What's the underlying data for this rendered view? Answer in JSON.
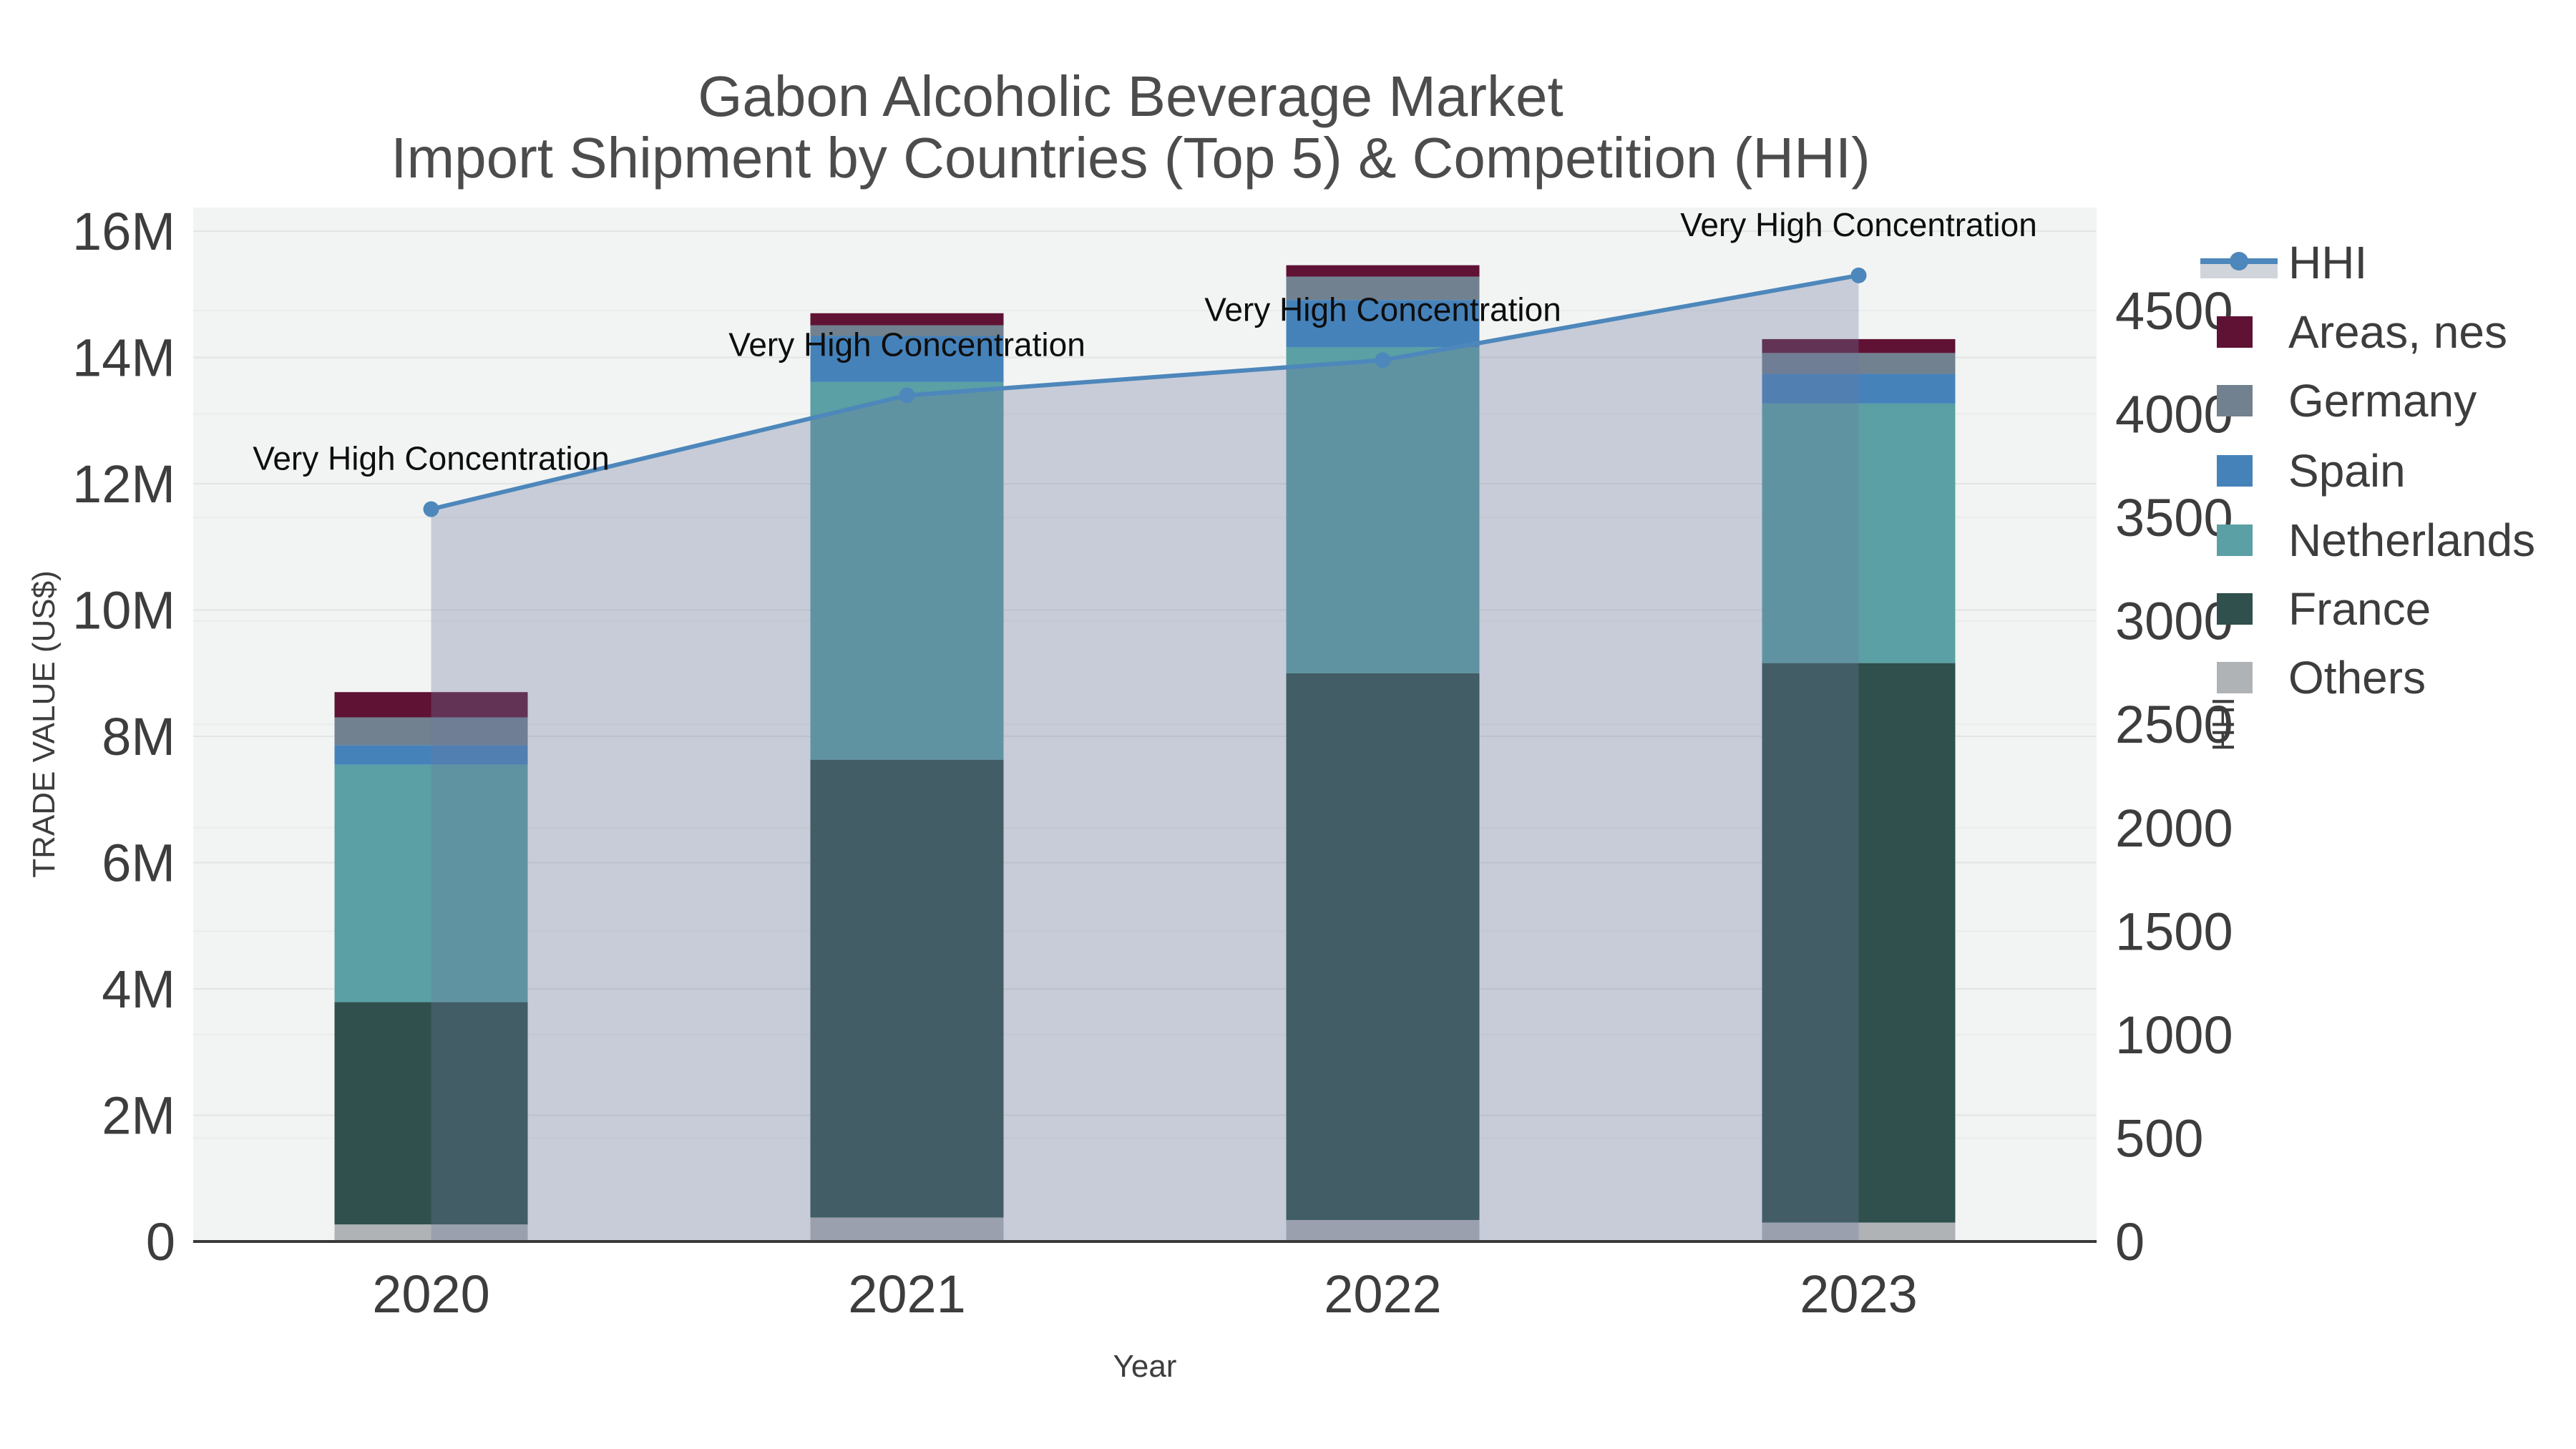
{
  "title": {
    "line1": "Gabon Alcoholic Beverage Market",
    "line2": "Import Shipment by Countries (Top 5) & Competition (HHI)"
  },
  "axes": {
    "left_title": "TRADE VALUE (US$)",
    "right_title": "HHI",
    "x_title": "Year",
    "left_ticks": [
      "0",
      "2M",
      "4M",
      "6M",
      "8M",
      "10M",
      "12M",
      "14M",
      "16M"
    ],
    "right_ticks": [
      "0",
      "500",
      "1000",
      "1500",
      "2000",
      "2500",
      "3000",
      "3500",
      "4000",
      "4500"
    ]
  },
  "colors": {
    "plot_bg": "#f2f4f3",
    "grid_major": "#e2e5e4",
    "grid_minor": "#eaecec",
    "axis_line": "#3a3a3a",
    "hhi_line": "#4d87bb",
    "hhi_area": "rgba(108,122,158,0.32)",
    "legend_band": "#d0d5dc"
  },
  "chart_data": {
    "type": "bar+line",
    "categories": [
      "2020",
      "2021",
      "2022",
      "2023"
    ],
    "stacked": true,
    "bar_unit": "US$ millions",
    "bar_series": [
      {
        "name": "Others",
        "color": "#b0b3b5",
        "values": [
          0.27,
          0.38,
          0.34,
          0.3
        ]
      },
      {
        "name": "France",
        "color": "#2f504c",
        "values": [
          3.52,
          7.25,
          8.66,
          8.86
        ]
      },
      {
        "name": "Netherlands",
        "color": "#5aa0a4",
        "values": [
          3.76,
          5.98,
          5.16,
          4.11
        ]
      },
      {
        "name": "Spain",
        "color": "#4682ba",
        "values": [
          0.31,
          0.73,
          0.75,
          0.47
        ]
      },
      {
        "name": "Germany",
        "color": "#71818f",
        "values": [
          0.44,
          0.17,
          0.37,
          0.33
        ]
      },
      {
        "name": "Areas, nes",
        "color": "#5f1234",
        "values": [
          0.4,
          0.19,
          0.18,
          0.22
        ]
      }
    ],
    "line_series": {
      "name": "HHI",
      "values": [
        3540,
        4090,
        4260,
        4670
      ]
    },
    "annotations": [
      "Very High Concentration",
      "Very High Concentration",
      "Very High Concentration",
      "Very High Concentration"
    ],
    "legend_order": [
      "HHI",
      "Areas, nes",
      "Germany",
      "Spain",
      "Netherlands",
      "France",
      "Others"
    ],
    "y_left_range": [
      0,
      16
    ],
    "y_right_range": [
      0,
      4500
    ],
    "grid": true,
    "legend_position": "top-right-outside"
  }
}
